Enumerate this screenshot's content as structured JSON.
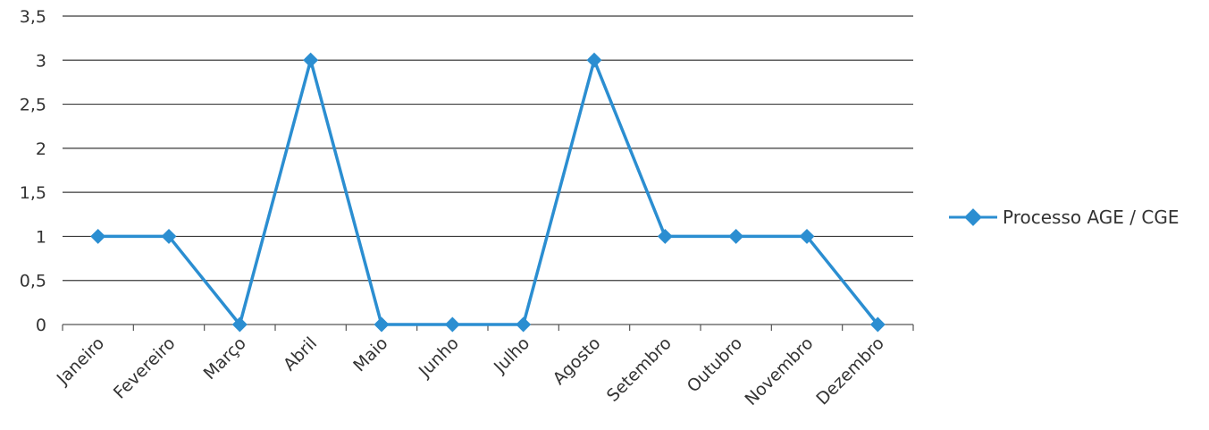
{
  "chart_data": {
    "type": "line",
    "categories": [
      "Janeiro",
      "Fevereiro",
      "Março",
      "Abril",
      "Maio",
      "Junho",
      "Julho",
      "Agosto",
      "Setembro",
      "Outubro",
      "Novembro",
      "Dezembro"
    ],
    "series": [
      {
        "name": "Processo AGE / CGE",
        "values": [
          1,
          1,
          0,
          3,
          0,
          0,
          0,
          3,
          1,
          1,
          1,
          0
        ],
        "color": "#2b8ed1"
      }
    ],
    "yticks": [
      "0",
      "0,5",
      "1",
      "1,5",
      "2",
      "2,5",
      "3",
      "3,5"
    ],
    "ylim": [
      0,
      3.5
    ],
    "grid": true,
    "legend": "right"
  }
}
